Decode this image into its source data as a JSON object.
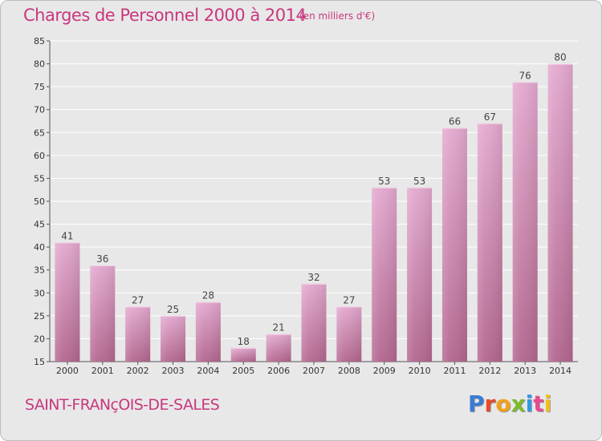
{
  "header": {
    "title": "Charges de Personnel 2000 à 2014",
    "subtitle": "(en milliers d'€)"
  },
  "footer": {
    "commune": "SAINT-FRANçOIS-DE-SALES",
    "logo": "Proxiti"
  },
  "colors": {
    "accent": "#c8377e",
    "bar_top": "#e3a9cf",
    "bar_bottom": "#b3668f",
    "plot_bg": "#e8e8e8",
    "grid": "#ffffff",
    "logo_letters": [
      "#3a7bd5",
      "#e84a2f",
      "#f1a11b",
      "#7cbb2c",
      "#2f9be8",
      "#e84a8f",
      "#f1c11b"
    ]
  },
  "chart_data": {
    "type": "bar",
    "title": "Charges de Personnel 2000 à 2014",
    "subtitle": "(en milliers d'€)",
    "xlabel": "",
    "ylabel": "",
    "categories": [
      "2000",
      "2001",
      "2002",
      "2003",
      "2004",
      "2005",
      "2006",
      "2007",
      "2008",
      "2009",
      "2010",
      "2011",
      "2012",
      "2013",
      "2014"
    ],
    "values": [
      41,
      36,
      27,
      25,
      28,
      18,
      21,
      32,
      27,
      53,
      53,
      66,
      67,
      76,
      80
    ],
    "data_labels": [
      "41",
      "36",
      "27",
      "25",
      "28",
      "18",
      "21",
      "32",
      "27",
      "53",
      "53",
      "66",
      "67",
      "76",
      "80"
    ],
    "ylim": [
      15,
      85
    ],
    "yticks": [
      "15",
      "20",
      "25",
      "30",
      "35",
      "40",
      "45",
      "50",
      "55",
      "60",
      "65",
      "70",
      "75",
      "80",
      "85"
    ],
    "grid": true,
    "legend": "none"
  }
}
